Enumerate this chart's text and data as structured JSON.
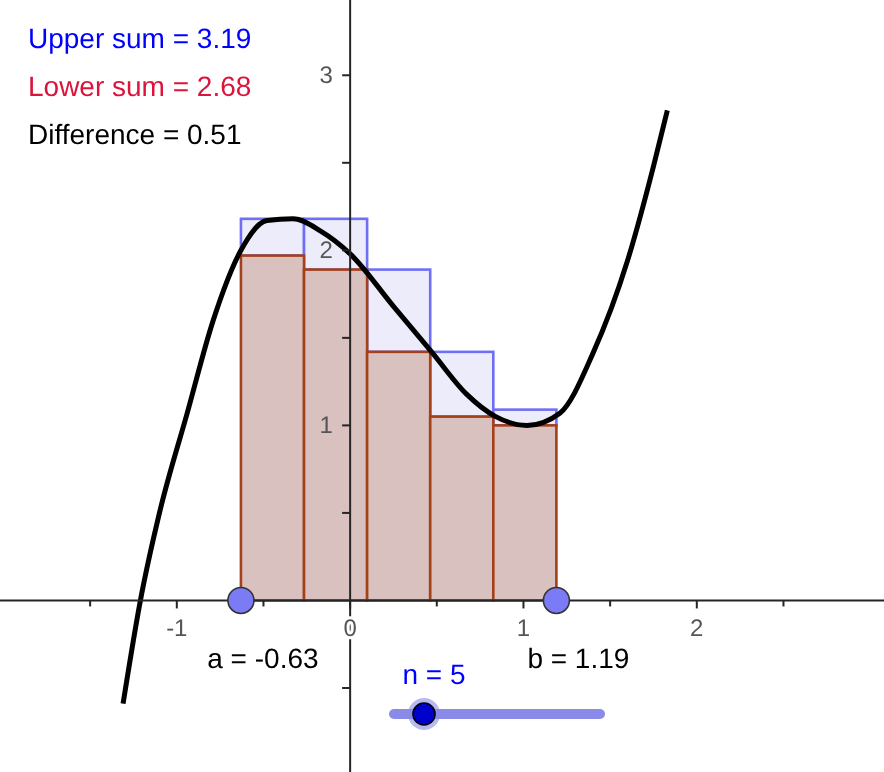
{
  "chart_data": {
    "type": "bar",
    "xlim": [
      -2.02,
      3.08
    ],
    "ylim": [
      -0.98,
      3.43
    ],
    "xticks": [
      {
        "value": -1.5,
        "label": null
      },
      -1,
      {
        "value": -0.5,
        "label": null
      },
      0,
      {
        "value": 0.5,
        "label": null
      },
      1,
      {
        "value": 1.5,
        "label": null
      },
      2,
      {
        "value": 2.5,
        "label": null
      }
    ],
    "yticks": [
      {
        "value": -0.5,
        "label": null
      },
      {
        "value": 0.5,
        "label": null
      },
      1,
      {
        "value": 1.5,
        "label": null
      },
      2,
      {
        "value": 2.5,
        "label": null
      },
      3
    ],
    "grid": false,
    "stacked": true,
    "series": [
      {
        "color": "#d9c1c0",
        "x": [
          -0.448,
          -0.084,
          0.28,
          0.644,
          1.008
        ],
        "values": [
          1.97,
          1.89,
          1.42,
          1.05,
          1.0
        ]
      },
      {
        "color": "#ececfb",
        "x": [
          -0.448,
          -0.084,
          0.28,
          0.644,
          1.008
        ],
        "values": [
          0.21,
          0.29,
          0.47,
          0.37,
          0.09
        ]
      },
      {
        "type": "line",
        "color": "#000000",
        "line_style": "solid",
        "marker": "none",
        "x": [
          -1.31,
          -1.21,
          -1.1,
          -0.94,
          -0.79,
          -0.63,
          -0.48,
          -0.33,
          -0.17,
          0,
          0.25,
          0.47,
          0.67,
          0.84,
          1.02,
          1.21,
          1.4,
          1.6,
          1.75,
          1.83
        ],
        "values": [
          -0.59,
          0,
          0.5,
          1.07,
          1.6,
          2.0,
          2.17,
          2.18,
          2.11,
          1.98,
          1.68,
          1.42,
          1.18,
          1.05,
          1.0,
          1.07,
          1.41,
          1.94,
          2.48,
          2.8
        ]
      },
      {
        "type": "scatter",
        "color": "#7b7bf5",
        "marker": "circle",
        "x": [
          -0.63,
          1.19
        ],
        "values": [
          0,
          0
        ]
      }
    ],
    "annotations": [
      "Upper sum = 3.19",
      "Lower sum = 2.68",
      "Difference = 0.51",
      {
        "text": "a = -0.63",
        "x": -0.63,
        "y": 0
      },
      {
        "text": "b = 1.19",
        "x": 1.19,
        "y": 0
      },
      "n = 5"
    ]
  }
}
